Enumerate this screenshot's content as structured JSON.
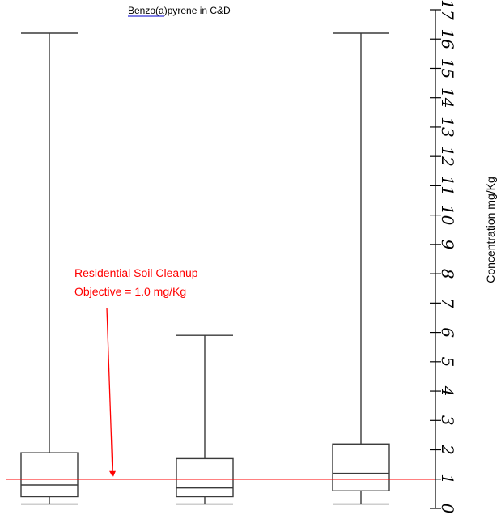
{
  "chart_data": {
    "type": "box",
    "title": "Benzo(a)pyrene in C&D",
    "xlabel": "",
    "ylabel": "Concentration mg/Kg",
    "ylim": [
      0,
      17
    ],
    "yticks": [
      "0",
      "1",
      "2",
      "3",
      "4",
      "5",
      "6",
      "7",
      "8",
      "9",
      "10",
      "11",
      "12",
      "13",
      "14",
      "15",
      "16",
      "17"
    ],
    "grid": false,
    "legend": "none",
    "boxes": [
      {
        "min": 0.15,
        "q1": 0.4,
        "median": 0.8,
        "q3": 1.9,
        "max": 16.2
      },
      {
        "min": 0.15,
        "q1": 0.4,
        "median": 0.7,
        "q3": 1.7,
        "max": 5.9
      },
      {
        "min": 0.15,
        "q1": 0.6,
        "median": 1.2,
        "q3": 2.2,
        "max": 16.2
      }
    ],
    "reference_line": {
      "value": 1.0,
      "color": "#ff0000"
    },
    "annotation": {
      "lines": [
        "Residential Soil Cleanup",
        "Objective = 1.0 mg/Kg"
      ],
      "color": "#ff0000",
      "arrow_to": 1.0
    },
    "colors": {
      "box_stroke": "#3a3a3a",
      "axis": "#000000",
      "annotation": "#ff0000",
      "title_underline": "#0000cc"
    }
  }
}
